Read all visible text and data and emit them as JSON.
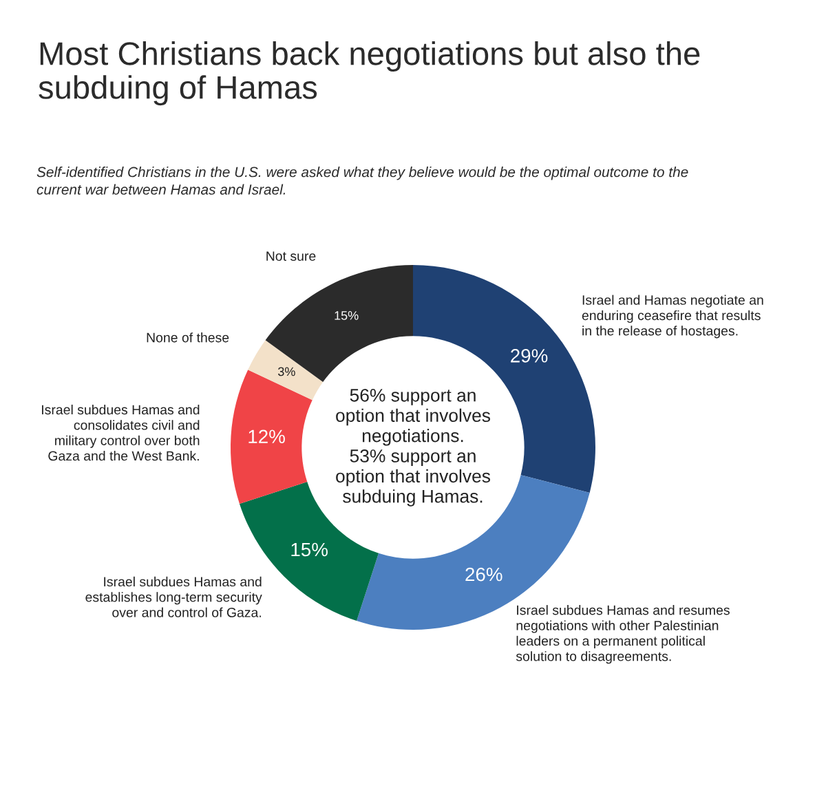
{
  "chart_data": {
    "type": "donut",
    "title": "Most Christians back negotiations but also the\nsubduing of Hamas",
    "subtitle": "Self-identified Christians in the U.S. were asked what they believe would be the optimal outcome to the\ncurrent war between Hamas and Israel.",
    "categories": [
      "Israel and Hamas negotiate an\nenduring ceasefire that results\nin the release of hostages.",
      "Israel subdues Hamas and resumes\nnegotiations with other Palestinian\nleaders on a permanent political\nsolution to disagreements.",
      "Israel subdues Hamas and\nestablishes long-term security\nover and control of Gaza.",
      "Israel subdues Hamas and\nconsolidates civil and\nmilitary control over both\nGaza and the West Bank.",
      "None of these",
      "Not sure"
    ],
    "values": [
      29,
      26,
      15,
      12,
      3,
      15
    ],
    "value_labels": [
      "29%",
      "26%",
      "15%",
      "12%",
      "3%",
      "15%"
    ],
    "colors": [
      "#1f4173",
      "#4c7fc0",
      "#03704a",
      "#f04447",
      "#f3e1c9",
      "#2b2b2b"
    ],
    "annotations": [
      "56% support an\noption that involves\nnegotiations.\n53% support an\noption that involves\nsubduing Hamas."
    ]
  }
}
